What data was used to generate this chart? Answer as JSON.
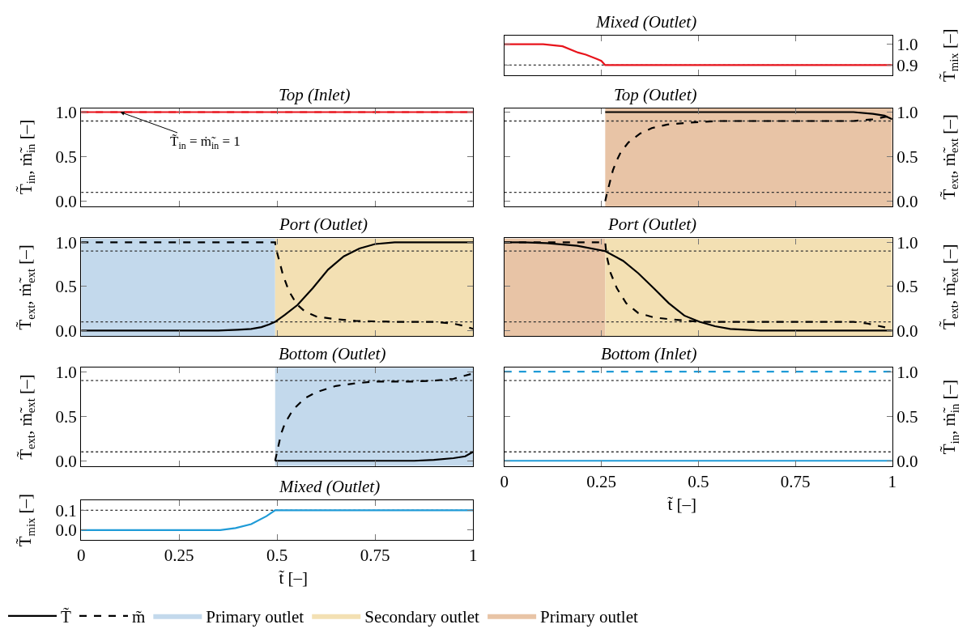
{
  "chart_data": [
    {
      "type": "line",
      "title": "Mixed (Outlet)",
      "ylabel": "T̃$_{mix}$ [–]",
      "xlim": [
        0,
        1
      ],
      "xticks": [
        0,
        0.25,
        0.5,
        0.75,
        1
      ],
      "ylim": [
        0.85,
        1.04
      ],
      "yticks": [
        {
          "value": 0.9,
          "label": "0.9"
        },
        {
          "value": 1,
          "label": "1.0"
        }
      ],
      "tick_labels": "y",
      "ref_lines": [
        {
          "axis": "y",
          "value": 0.9,
          "color": "#333333",
          "line_style": "dotted"
        }
      ],
      "series": [
        {
          "color": "#e8141c",
          "line_style": "solid",
          "x": [
            0,
            0.05,
            0.1,
            0.15,
            0.19,
            0.21,
            0.238,
            0.25,
            0.26,
            0.3,
            1
          ],
          "values": [
            1.0,
            1.0,
            1.0,
            0.99,
            0.96,
            0.95,
            0.93,
            0.92,
            0.9,
            0.9,
            0.9
          ]
        }
      ]
    },
    {
      "type": "line",
      "title": "Top (Inlet)",
      "ylabel": "T̃$_{in}$, ṁ̃$_{in}$ [–]",
      "xlim": [
        0,
        1
      ],
      "xticks": [
        0,
        0.25,
        0.5,
        0.75,
        1
      ],
      "ylim": [
        -0.06,
        1.045
      ],
      "yticks": [
        {
          "value": 0,
          "label": "0.0"
        },
        {
          "value": 0.5,
          "label": "0.5"
        },
        {
          "value": 1,
          "label": "1.0"
        }
      ],
      "tick_labels": "y",
      "annotations": [
        {
          "text": "T̃$_{in}$ = ṁ̃$_{in}$ = 1",
          "x": 0.1,
          "y": 1.0
        }
      ],
      "ref_lines": [
        {
          "axis": "y",
          "value": 0.9,
          "color": "#333333",
          "line_style": "dotted"
        },
        {
          "axis": "y",
          "value": 0.1,
          "color": "#333333",
          "line_style": "dotted"
        }
      ],
      "series": [
        {
          "color": "#e8141c",
          "line_style": "solid",
          "x": [
            0,
            1
          ],
          "values": [
            1,
            1
          ]
        },
        {
          "color": "#e8141c",
          "line_style": "dashed",
          "x": [
            0,
            1
          ],
          "values": [
            1,
            1
          ]
        }
      ]
    },
    {
      "type": "line",
      "title": "Top (Outlet)",
      "ylabel": "T̃$_{ext}$, ṁ̃$_{ext}$ [–]",
      "xlim": [
        0,
        1
      ],
      "xticks": [
        0,
        0.25,
        0.5,
        0.75,
        1
      ],
      "ylim": [
        -0.06,
        1.045
      ],
      "yticks": [
        {
          "value": 0,
          "label": "0.0"
        },
        {
          "value": 0.5,
          "label": "0.5"
        },
        {
          "value": 1,
          "label": "1.0"
        }
      ],
      "tick_labels": "y",
      "legend": "bottom",
      "bands": [
        {
          "axis": "x",
          "from": 0.26,
          "to": 1,
          "label": "Primary outlet",
          "color": "#e8c4a6"
        }
      ],
      "ref_lines": [
        {
          "axis": "y",
          "value": 0.9,
          "color": "#333333",
          "line_style": "dotted"
        },
        {
          "axis": "y",
          "value": 0.1,
          "color": "#333333",
          "line_style": "dotted"
        }
      ],
      "series": [
        {
          "name": "T̃",
          "color": "#000000",
          "line_style": "solid",
          "x": [
            0.26,
            0.5,
            0.85,
            0.9,
            0.95,
            0.98,
            1.0
          ],
          "values": [
            1.0,
            1.0,
            1.0,
            1.0,
            0.98,
            0.96,
            0.92
          ]
        },
        {
          "name": "m̃",
          "color": "#000000",
          "line_style": "dashed",
          "x": [
            0.26,
            0.265,
            0.27,
            0.28,
            0.29,
            0.3,
            0.32,
            0.35,
            0.38,
            0.42,
            0.47,
            0.55,
            0.7,
            0.85,
            0.9,
            0.95,
            1.0
          ],
          "values": [
            0,
            0.1,
            0.18,
            0.35,
            0.46,
            0.55,
            0.66,
            0.76,
            0.82,
            0.86,
            0.88,
            0.9,
            0.9,
            0.9,
            0.9,
            0.92,
            0.96
          ]
        }
      ]
    },
    {
      "type": "line",
      "title": "Port (Outlet)",
      "ylabel": "T̃$_{ext}$, ṁ̃$_{ext}$ [–]",
      "xlim": [
        0,
        1
      ],
      "xticks": [
        0,
        0.25,
        0.5,
        0.75,
        1
      ],
      "ylim": [
        -0.06,
        1.045
      ],
      "yticks": [
        {
          "value": 0,
          "label": "0.0"
        },
        {
          "value": 0.5,
          "label": "0.5"
        },
        {
          "value": 1,
          "label": "1.0"
        }
      ],
      "tick_labels": "y",
      "legend": "bottom",
      "bands": [
        {
          "axis": "x",
          "from": 0,
          "to": 0.495,
          "label": "Primary outlet",
          "color": "#c3d9ec"
        },
        {
          "axis": "x",
          "from": 0.495,
          "to": 1,
          "label": "Secondary outlet",
          "color": "#f3e0b3"
        }
      ],
      "ref_lines": [
        {
          "axis": "y",
          "value": 0.9,
          "color": "#333333",
          "line_style": "dotted"
        },
        {
          "axis": "y",
          "value": 0.1,
          "color": "#333333",
          "line_style": "dotted"
        }
      ],
      "series": [
        {
          "color": "#000000",
          "line_style": "solid",
          "x": [
            0,
            0.35,
            0.4,
            0.434,
            0.46,
            0.48,
            0.495,
            0.52,
            0.552,
            0.591,
            0.63,
            0.67,
            0.71,
            0.75,
            0.8,
            0.85,
            1.0
          ],
          "values": [
            0,
            0,
            0.01,
            0.02,
            0.04,
            0.07,
            0.1,
            0.18,
            0.29,
            0.48,
            0.69,
            0.84,
            0.93,
            0.98,
            1.0,
            1.0,
            1.0
          ]
        },
        {
          "color": "#000000",
          "line_style": "dashed",
          "x": [
            0,
            0.495,
            0.496,
            0.505,
            0.515,
            0.53,
            0.55,
            0.57,
            0.6,
            0.65,
            0.7,
            0.8,
            0.9,
            0.95,
            0.98,
            1.0
          ],
          "values": [
            1.0,
            1.0,
            0.95,
            0.8,
            0.63,
            0.45,
            0.3,
            0.22,
            0.16,
            0.13,
            0.11,
            0.1,
            0.1,
            0.08,
            0.05,
            0.02
          ]
        }
      ]
    },
    {
      "type": "line",
      "title": "Port (Outlet)",
      "ylabel": "T̃$_{ext}$, ṁ̃$_{ext}$ [–]",
      "xlim": [
        0,
        1
      ],
      "xticks": [
        0,
        0.25,
        0.5,
        0.75,
        1
      ],
      "ylim": [
        -0.06,
        1.045
      ],
      "yticks": [
        {
          "value": 0,
          "label": "0.0"
        },
        {
          "value": 0.5,
          "label": "0.5"
        },
        {
          "value": 1,
          "label": "1.0"
        }
      ],
      "tick_labels": "y",
      "bands": [
        {
          "axis": "x",
          "from": 0,
          "to": 0.26,
          "color": "#e8c4a6"
        },
        {
          "axis": "x",
          "from": 0.26,
          "to": 1,
          "color": "#f3e0b3"
        }
      ],
      "ref_lines": [
        {
          "axis": "y",
          "value": 0.9,
          "color": "#333333",
          "line_style": "dotted"
        },
        {
          "axis": "y",
          "value": 0.1,
          "color": "#333333",
          "line_style": "dotted"
        }
      ],
      "series": [
        {
          "color": "#000000",
          "line_style": "solid",
          "x": [
            0,
            0.05,
            0.109,
            0.188,
            0.26,
            0.306,
            0.345,
            0.385,
            0.424,
            0.464,
            0.503,
            0.543,
            0.582,
            0.66,
            1.0
          ],
          "values": [
            1.0,
            1.0,
            0.99,
            0.96,
            0.9,
            0.79,
            0.65,
            0.48,
            0.31,
            0.17,
            0.1,
            0.05,
            0.02,
            0.0,
            0.0
          ]
        },
        {
          "color": "#000000",
          "line_style": "dashed",
          "x": [
            0,
            0.26,
            0.263,
            0.274,
            0.29,
            0.314,
            0.345,
            0.385,
            0.424,
            0.503,
            0.7,
            0.9,
            0.937,
            1.0
          ],
          "values": [
            1.0,
            1.0,
            0.86,
            0.65,
            0.48,
            0.31,
            0.2,
            0.15,
            0.13,
            0.1,
            0.1,
            0.1,
            0.08,
            0.02
          ]
        }
      ]
    },
    {
      "type": "line",
      "title": "Bottom (Outlet)",
      "ylabel": "T̃$_{ext}$, ṁ̃$_{ext}$ [–]",
      "xlim": [
        0,
        1
      ],
      "xticks": [
        0,
        0.25,
        0.5,
        0.75,
        1
      ],
      "ylim": [
        -0.06,
        1.045
      ],
      "yticks": [
        {
          "value": 0,
          "label": "0.0"
        },
        {
          "value": 0.5,
          "label": "0.5"
        },
        {
          "value": 1,
          "label": "1.0"
        }
      ],
      "tick_labels": "y",
      "bands": [
        {
          "axis": "x",
          "from": 0.495,
          "to": 1,
          "color": "#c3d9ec"
        }
      ],
      "ref_lines": [
        {
          "axis": "y",
          "value": 0.9,
          "color": "#333333",
          "line_style": "dotted"
        },
        {
          "axis": "y",
          "value": 0.1,
          "color": "#333333",
          "line_style": "dotted"
        }
      ],
      "series": [
        {
          "color": "#000000",
          "line_style": "solid",
          "x": [
            0.495,
            0.85,
            0.9,
            0.95,
            0.98,
            1.0
          ],
          "values": [
            0,
            0,
            0.01,
            0.03,
            0.05,
            0.1
          ]
        },
        {
          "color": "#000000",
          "line_style": "dashed",
          "x": [
            0.495,
            0.5,
            0.51,
            0.52,
            0.54,
            0.57,
            0.6,
            0.65,
            0.7,
            0.75,
            0.85,
            0.9,
            0.95,
            1.0
          ],
          "values": [
            0,
            0.1,
            0.3,
            0.42,
            0.57,
            0.7,
            0.77,
            0.84,
            0.87,
            0.89,
            0.89,
            0.9,
            0.92,
            0.98
          ]
        }
      ]
    },
    {
      "type": "line",
      "title": "Bottom (Inlet)",
      "xlabel": "t̃ [–]",
      "ylabel": "T̃$_{in}$, ṁ̃$_{in}$ [–]",
      "xlim": [
        0,
        1
      ],
      "xticks": [
        0,
        0.25,
        0.5,
        0.75,
        1
      ],
      "ylim": [
        -0.06,
        1.045
      ],
      "yticks": [
        {
          "value": 0,
          "label": "0.0"
        },
        {
          "value": 0.5,
          "label": "0.5"
        },
        {
          "value": 1,
          "label": "1.0"
        }
      ],
      "ref_lines": [
        {
          "axis": "y",
          "value": 0.9,
          "color": "#333333",
          "line_style": "dotted"
        },
        {
          "axis": "y",
          "value": 0.1,
          "color": "#333333",
          "line_style": "dotted"
        }
      ],
      "series": [
        {
          "color": "#1f9bd7",
          "line_style": "solid",
          "x": [
            0,
            1
          ],
          "values": [
            0,
            0
          ]
        },
        {
          "color": "#1f9bd7",
          "line_style": "dashed",
          "x": [
            0,
            1
          ],
          "values": [
            1,
            1
          ]
        }
      ]
    },
    {
      "type": "line",
      "title": "Mixed (Outlet)",
      "xlabel": "t̃ [–]",
      "ylabel": "T̃$_{mix}$ [–]",
      "xlim": [
        0,
        1
      ],
      "xticks": [
        0,
        0.25,
        0.5,
        0.75,
        1
      ],
      "ylim": [
        -0.05,
        0.15
      ],
      "yticks": [
        {
          "value": 0,
          "label": "0.0"
        },
        {
          "value": 0.1,
          "label": "0.1"
        }
      ],
      "ref_lines": [
        {
          "axis": "y",
          "value": 0.1,
          "color": "#333333",
          "line_style": "dotted"
        }
      ],
      "series": [
        {
          "color": "#1f9bd7",
          "line_style": "solid",
          "x": [
            0,
            0.3,
            0.355,
            0.394,
            0.434,
            0.473,
            0.495,
            0.6,
            1
          ],
          "values": [
            0,
            0,
            0,
            0.01,
            0.03,
            0.07,
            0.1,
            0.1,
            0.1
          ]
        }
      ]
    }
  ]
}
